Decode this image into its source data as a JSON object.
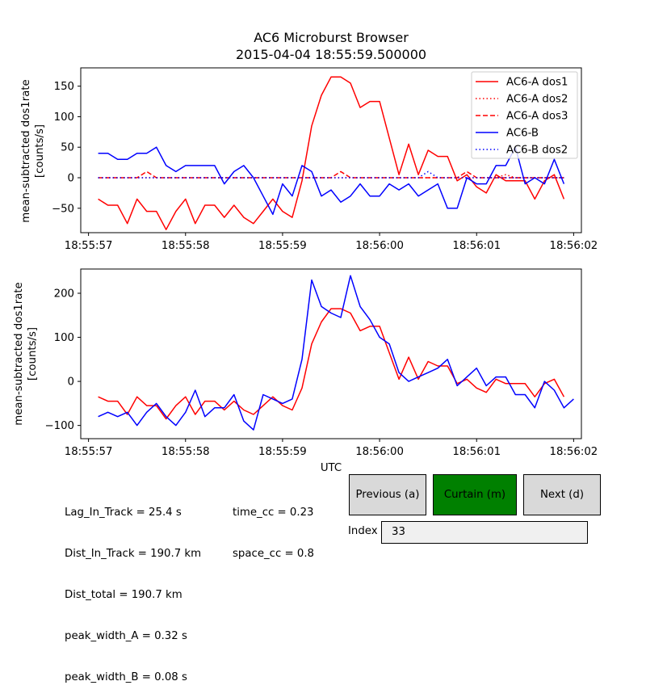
{
  "title_line1": "AC6 Microburst Browser",
  "title_line2": "2015-04-04 18:55:59.500000",
  "colors": {
    "red": "#ff0000",
    "blue": "#0000ff",
    "green_button": "#008000"
  },
  "chart_data": [
    {
      "type": "line",
      "ylabel_line1": "mean-subtracted dos1rate",
      "ylabel_line2": "[counts/s]",
      "xlabel": "",
      "xlim_s": [
        -0.08,
        5.08
      ],
      "ylim": [
        -90,
        180
      ],
      "x_ticks": [
        {
          "t": 0,
          "label": "18:55:57"
        },
        {
          "t": 1,
          "label": "18:55:58"
        },
        {
          "t": 2,
          "label": "18:55:59"
        },
        {
          "t": 3,
          "label": "18:56:00"
        },
        {
          "t": 4,
          "label": "18:56:01"
        },
        {
          "t": 5,
          "label": "18:56:02"
        }
      ],
      "y_ticks": [
        -50,
        0,
        50,
        100,
        150
      ],
      "legend_position": "top-right",
      "x_start_s": 0.1,
      "x_step_s": 0.1,
      "series": [
        {
          "name": "AC6-A dos1",
          "color": "#ff0000",
          "style": "solid",
          "values": [
            -35,
            -45,
            -45,
            -75,
            -35,
            -55,
            -55,
            -85,
            -55,
            -35,
            -75,
            -45,
            -45,
            -65,
            -45,
            -65,
            -75,
            -55,
            -35,
            -55,
            -65,
            -5,
            85,
            135,
            165,
            165,
            155,
            115,
            125,
            125,
            65,
            5,
            55,
            5,
            45,
            35,
            35,
            -5,
            5,
            -15,
            -25,
            5,
            -5,
            -5,
            -5,
            -35,
            -5,
            5,
            -35
          ]
        },
        {
          "name": "AC6-A dos2",
          "color": "#ff0000",
          "style": "dotted",
          "values": [
            0,
            0,
            0,
            0,
            0,
            0,
            0,
            0,
            0,
            0,
            0,
            0,
            0,
            0,
            0,
            0,
            0,
            0,
            0,
            0,
            0,
            0,
            0,
            0,
            0,
            0,
            0,
            0,
            0,
            0,
            0,
            0,
            0,
            0,
            0,
            0,
            0,
            0,
            0,
            0,
            0,
            0,
            5,
            0,
            0,
            0,
            0,
            0,
            0
          ]
        },
        {
          "name": "AC6-A dos3",
          "color": "#ff0000",
          "style": "dashed",
          "values": [
            0,
            0,
            0,
            0,
            0,
            10,
            0,
            0,
            0,
            0,
            0,
            0,
            0,
            0,
            0,
            0,
            0,
            0,
            0,
            0,
            0,
            0,
            0,
            0,
            0,
            10,
            0,
            0,
            0,
            0,
            0,
            0,
            0,
            0,
            0,
            0,
            0,
            0,
            10,
            0,
            0,
            0,
            0,
            0,
            0,
            0,
            0,
            0,
            0
          ]
        },
        {
          "name": "AC6-B",
          "color": "#0000ff",
          "style": "solid",
          "values": [
            40,
            40,
            30,
            30,
            40,
            40,
            50,
            20,
            10,
            20,
            20,
            20,
            20,
            -10,
            10,
            20,
            0,
            -30,
            -60,
            -10,
            -30,
            20,
            10,
            -30,
            -20,
            -40,
            -30,
            -10,
            -30,
            -30,
            -10,
            -20,
            -10,
            -30,
            -20,
            -10,
            -50,
            -50,
            0,
            -10,
            -10,
            20,
            20,
            50,
            -10,
            0,
            -10,
            30,
            -10
          ]
        },
        {
          "name": "AC6-B dos2",
          "color": "#0000ff",
          "style": "dotted",
          "values": [
            0,
            0,
            0,
            0,
            0,
            0,
            0,
            0,
            0,
            0,
            0,
            0,
            0,
            0,
            0,
            0,
            0,
            0,
            0,
            0,
            0,
            0,
            0,
            0,
            0,
            0,
            0,
            0,
            0,
            0,
            0,
            0,
            0,
            0,
            10,
            0,
            0,
            0,
            0,
            0,
            0,
            0,
            0,
            0,
            0,
            0,
            0,
            0,
            0
          ]
        }
      ]
    },
    {
      "type": "line",
      "ylabel_line1": "mean-subtracted dos1rate",
      "ylabel_line2": "[counts/s]",
      "xlabel": "UTC",
      "xlim_s": [
        -0.08,
        5.08
      ],
      "ylim": [
        -130,
        255
      ],
      "x_ticks": [
        {
          "t": 0,
          "label": "18:55:57"
        },
        {
          "t": 1,
          "label": "18:55:58"
        },
        {
          "t": 2,
          "label": "18:55:59"
        },
        {
          "t": 3,
          "label": "18:56:00"
        },
        {
          "t": 4,
          "label": "18:56:01"
        },
        {
          "t": 5,
          "label": "18:56:02"
        }
      ],
      "y_ticks": [
        -100,
        0,
        100,
        200
      ],
      "series": [
        {
          "color": "#ff0000",
          "style": "solid",
          "x_start_s": 0.1,
          "x_step_s": 0.1,
          "values": [
            -35,
            -45,
            -45,
            -75,
            -35,
            -55,
            -55,
            -85,
            -55,
            -35,
            -75,
            -45,
            -45,
            -65,
            -45,
            -65,
            -75,
            -55,
            -35,
            -55,
            -65,
            -15,
            85,
            135,
            165,
            165,
            155,
            115,
            125,
            125,
            65,
            5,
            55,
            5,
            45,
            35,
            35,
            -5,
            5,
            -15,
            -25,
            5,
            -5,
            -5,
            -5,
            -35,
            -5,
            5,
            -35
          ]
        },
        {
          "color": "#0000ff",
          "style": "solid",
          "x_start_s": 0.1,
          "x_step_s": 0.1,
          "values": [
            -80,
            -70,
            -80,
            -70,
            -100,
            -70,
            -50,
            -80,
            -100,
            -70,
            -20,
            -80,
            -60,
            -60,
            -30,
            -90,
            -110,
            -30,
            -40,
            -50,
            -40,
            50,
            230,
            170,
            155,
            145,
            240,
            170,
            140,
            100,
            85,
            20,
            0,
            10,
            20,
            30,
            50,
            -10,
            10,
            30,
            -10,
            10,
            10,
            -30,
            -30,
            -60,
            0,
            -20,
            -60,
            -40
          ]
        }
      ]
    }
  ],
  "stats_col1": [
    "Lag_In_Track = 25.4 s",
    "Dist_In_Track = 190.7 km",
    "Dist_total = 190.7 km",
    "peak_width_A = 0.32 s",
    "peak_width_B = 0.08 s"
  ],
  "stats_col2": [
    "time_cc = 0.23",
    "space_cc = 0.8"
  ],
  "buttons": {
    "previous": "Previous (a)",
    "curtain": "Curtain (m)",
    "next": "Next (d)"
  },
  "index_label": "Index",
  "index_value": "33"
}
